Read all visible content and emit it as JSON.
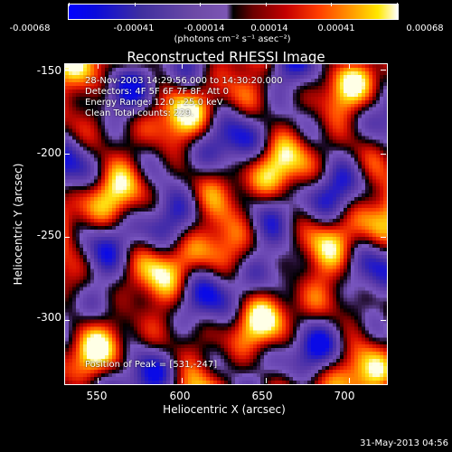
{
  "colorbar": {
    "ticks": [
      "-0.00068",
      "-0.00041",
      "-0.00014",
      "0.00014",
      "0.00041",
      "0.00068"
    ],
    "unit": "(photons cm⁻² s⁻¹ asec⁻²)"
  },
  "title": "Reconstructed RHESSI Image",
  "info": {
    "time": "28-Nov-2003 14:29:56.000 to 14:30:20.000",
    "detectors": "Detectors: 4F 5F 6F 7F 8F, Att 0",
    "energy": "Energy Range: 12.0 - 25.0 keV",
    "method": "Clean     Total counts: 229.",
    "peak": "Position of Peak = [531,-247]"
  },
  "axes": {
    "xlabel": "Heliocentric X (arcsec)",
    "ylabel": "Heliocentric Y (arcsec)",
    "xticks": [
      "550",
      "600",
      "650",
      "700"
    ],
    "yticks": [
      "-150",
      "-200",
      "-250",
      "-300"
    ],
    "xrange": [
      530,
      722
    ],
    "yrange": [
      -338,
      -146
    ],
    "xtick_values": [
      550,
      600,
      650,
      700
    ],
    "ytick_values": [
      -150,
      -200,
      -250,
      -300
    ]
  },
  "footer": "31-May-2013 04:56",
  "colors": {
    "background": "#000000",
    "foreground": "#ffffff"
  }
}
